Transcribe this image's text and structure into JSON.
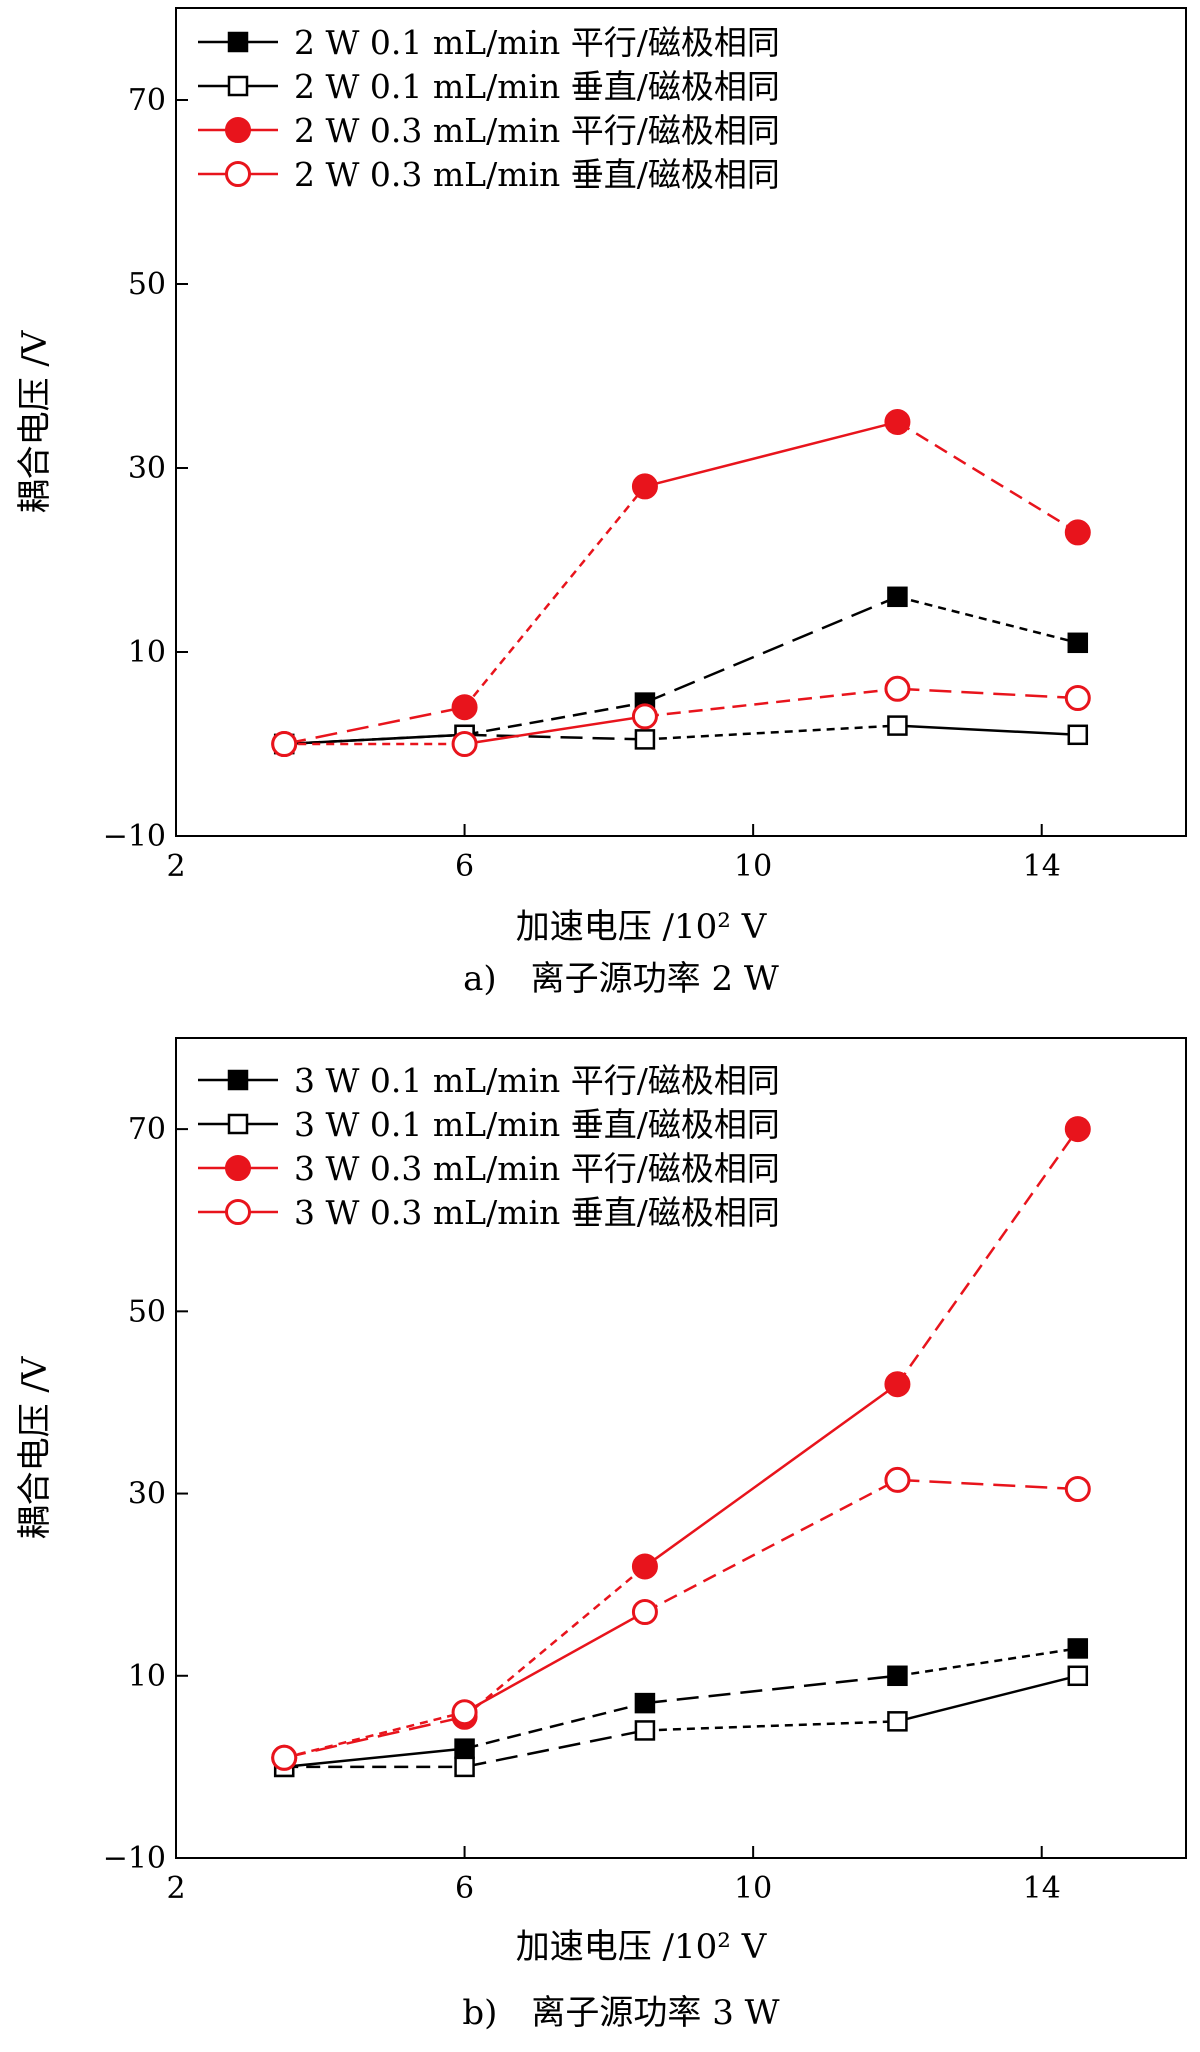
{
  "chart_data": [
    {
      "type": "line",
      "caption": "a)　离子源功率 2 W",
      "xlabel": "加速电压 /10² V",
      "ylabel": "耦合电压 /V",
      "xlim": [
        2,
        16
      ],
      "ylim": [
        -10,
        80
      ],
      "xticks": [
        "2",
        "6",
        "10",
        "14"
      ],
      "yticks": [
        "-10",
        "10",
        "30",
        "50",
        "70"
      ],
      "legend_position": "top-left",
      "x": [
        3.5,
        6,
        8.5,
        12,
        14.5
      ],
      "series": [
        {
          "name": "2 W 0.1 mL/min 平行/磁极相同",
          "color": "#000000",
          "marker": "square-filled",
          "values": [
            0,
            1,
            4.5,
            16,
            11
          ]
        },
        {
          "name": "2 W 0.1 mL/min 垂直/磁极相同",
          "color": "#000000",
          "marker": "square-open",
          "values": [
            0,
            1,
            0.5,
            2,
            1
          ]
        },
        {
          "name": "2 W 0.3 mL/min 平行/磁极相同",
          "color": "#e8141c",
          "marker": "circle-filled",
          "values": [
            0,
            4,
            28,
            35,
            23
          ]
        },
        {
          "name": "2 W 0.3 mL/min 垂直/磁极相同",
          "color": "#e8141c",
          "marker": "circle-open",
          "values": [
            0,
            0,
            3,
            6,
            5
          ]
        }
      ]
    },
    {
      "type": "line",
      "caption": "b)　离子源功率 3 W",
      "xlabel": "加速电压 /10² V",
      "ylabel": "耦合电压 /V",
      "xlim": [
        2,
        16
      ],
      "ylim": [
        -10,
        80
      ],
      "xticks": [
        "2",
        "6",
        "10",
        "14"
      ],
      "yticks": [
        "-10",
        "10",
        "30",
        "50",
        "70"
      ],
      "legend_position": "top-left",
      "x": [
        3.5,
        6,
        8.5,
        12,
        14.5
      ],
      "series": [
        {
          "name": "3 W 0.1 mL/min 平行/磁极相同",
          "color": "#000000",
          "marker": "square-filled",
          "values": [
            0,
            2,
            7,
            10,
            13
          ]
        },
        {
          "name": "3 W 0.1 mL/min 垂直/磁极相同",
          "color": "#000000",
          "marker": "square-open",
          "values": [
            0,
            0,
            4,
            5,
            10
          ]
        },
        {
          "name": "3 W 0.3 mL/min 平行/磁极相同",
          "color": "#e8141c",
          "marker": "circle-filled",
          "values": [
            1,
            5.5,
            22,
            42,
            70
          ]
        },
        {
          "name": "3 W 0.3 mL/min 垂直/磁极相同",
          "color": "#e8141c",
          "marker": "circle-open",
          "values": [
            1,
            6,
            17,
            31.5,
            30.5
          ]
        }
      ]
    }
  ]
}
